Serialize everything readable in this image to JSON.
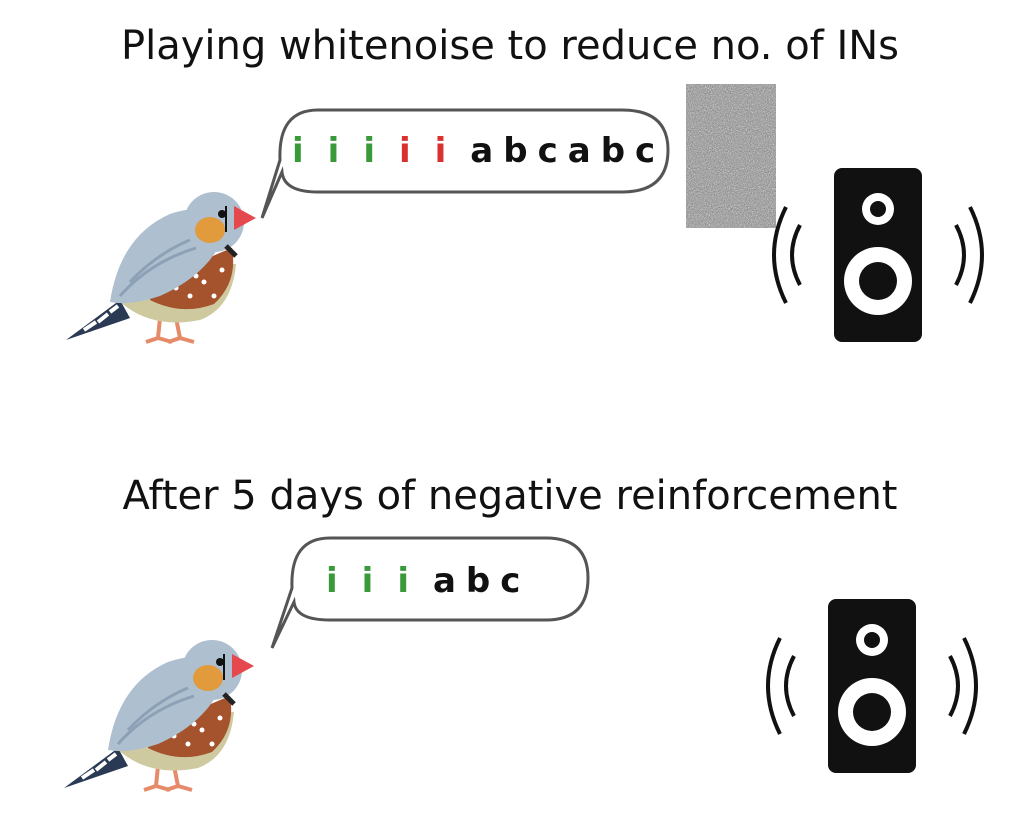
{
  "colors": {
    "intro_kept": "#3a9a3a",
    "intro_removed": "#d93030",
    "motif": "#111111",
    "speaker": "#111111"
  },
  "panels": [
    {
      "title": "Playing whitenoise to reduce no. of INs",
      "song": [
        {
          "text": "i",
          "kind": "intro_kept"
        },
        {
          "text": "i",
          "kind": "intro_kept"
        },
        {
          "text": "i",
          "kind": "intro_kept"
        },
        {
          "text": "i",
          "kind": "intro_removed"
        },
        {
          "text": "i",
          "kind": "intro_removed"
        },
        {
          "text": "a",
          "kind": "motif"
        },
        {
          "text": "b",
          "kind": "motif"
        },
        {
          "text": "c",
          "kind": "motif"
        },
        {
          "text": "a",
          "kind": "motif"
        },
        {
          "text": "b",
          "kind": "motif"
        },
        {
          "text": "c",
          "kind": "motif"
        }
      ],
      "noise_shown": true
    },
    {
      "title": "After 5 days of negative reinforcement",
      "song": [
        {
          "text": "i",
          "kind": "intro_kept"
        },
        {
          "text": "i",
          "kind": "intro_kept"
        },
        {
          "text": "i",
          "kind": "intro_kept"
        },
        {
          "text": "a",
          "kind": "motif"
        },
        {
          "text": "b",
          "kind": "motif"
        },
        {
          "text": "c",
          "kind": "motif"
        }
      ],
      "noise_shown": false
    }
  ]
}
